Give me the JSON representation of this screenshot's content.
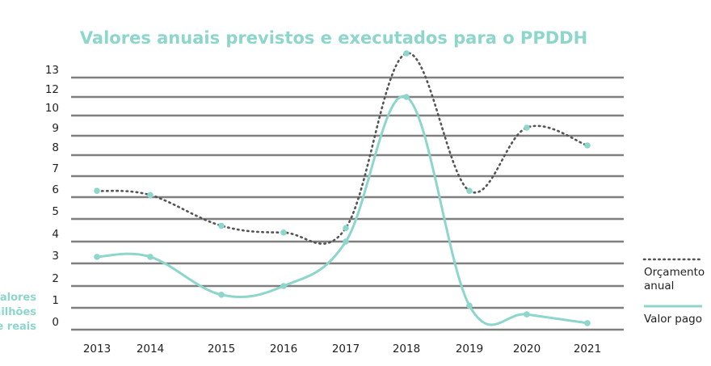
{
  "chart_data": {
    "type": "line",
    "title": "Valores anuais previstos e executados para o PPDDH",
    "ylabel_lines": [
      "Valores",
      "em milhões",
      "de reais"
    ],
    "x": [
      "2013",
      "2014",
      "2015",
      "2016",
      "2017",
      "2018",
      "2019",
      "2020",
      "2021"
    ],
    "y_ticks": [
      0,
      1,
      2,
      3,
      4,
      5,
      6,
      7,
      8,
      9,
      10,
      12,
      13
    ],
    "ylim": [
      0,
      13
    ],
    "grid": true,
    "legend_position": "bottom-right",
    "series": [
      {
        "name_lines": [
          "Orçamento",
          "anual"
        ],
        "style": "dotted",
        "color": "#555555",
        "marker_color": "#8dd6cb",
        "values": [
          6.3,
          6.1,
          4.7,
          4.4,
          4.6,
          14.0,
          6.3,
          9.4,
          8.5
        ]
      },
      {
        "name": "Valor pago",
        "style": "solid",
        "color": "#8dd6cb",
        "marker_color": "#8dd6cb",
        "values": [
          3.3,
          3.3,
          1.6,
          2.0,
          4.0,
          12.0,
          1.1,
          0.7,
          0.3
        ]
      }
    ]
  }
}
